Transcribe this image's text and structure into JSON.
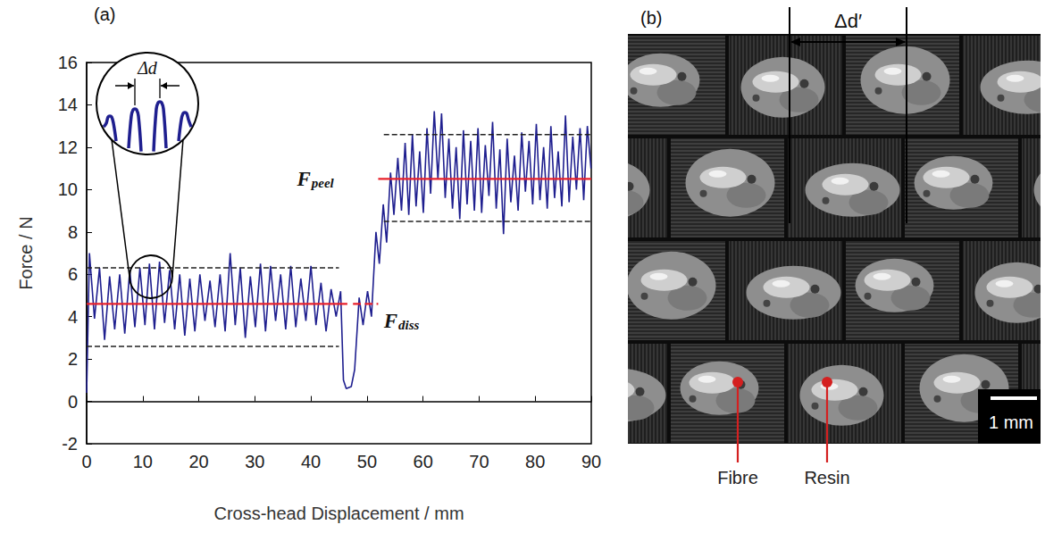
{
  "chart_data": {
    "type": "line",
    "title": "(a)",
    "x_label": "Cross-head Displacement / mm",
    "y_label": "Force / N",
    "color": "#1f1f8f",
    "marker": "none",
    "grid": false,
    "xlim": [
      0,
      90
    ],
    "xticks": [
      0,
      10,
      20,
      30,
      40,
      50,
      60,
      70,
      80,
      90
    ],
    "ylim": [
      -2,
      16
    ],
    "yticks": [
      -2,
      0,
      2,
      4,
      6,
      8,
      10,
      12,
      14,
      16
    ],
    "x": [
      0,
      0.5,
      1.4,
      2.3,
      3.2,
      4.1,
      5.0,
      5.9,
      6.8,
      7.7,
      8.6,
      9.5,
      10.4,
      11.2,
      12.1,
      13.0,
      13.9,
      14.8,
      15.7,
      16.6,
      17.5,
      18.4,
      19.3,
      20.2,
      21.1,
      22.0,
      22.9,
      23.8,
      24.7,
      25.6,
      26.5,
      27.4,
      28.3,
      29.2,
      30.1,
      31.0,
      31.9,
      32.8,
      33.7,
      34.6,
      35.5,
      36.4,
      37.3,
      38.2,
      39.1,
      40.0,
      40.9,
      41.8,
      42.7,
      43.6,
      44.5,
      45.3,
      45.8,
      46.3,
      47.2,
      47.8,
      48.6,
      49.3,
      50.1,
      50.8,
      51.6,
      52.2,
      52.9,
      53.5,
      54.2,
      54.8,
      55.5,
      56.15,
      56.8,
      57.45,
      58.1,
      58.75,
      59.4,
      60.05,
      60.7,
      61.35,
      62.0,
      62.65,
      63.3,
      63.95,
      64.6,
      65.25,
      65.9,
      66.55,
      67.2,
      67.85,
      68.5,
      69.15,
      69.8,
      70.45,
      71.1,
      71.75,
      72.4,
      73.05,
      73.7,
      74.35,
      75.0,
      75.65,
      76.3,
      76.95,
      77.6,
      78.25,
      78.9,
      79.55,
      80.2,
      80.85,
      81.5,
      82.15,
      82.8,
      83.45,
      84.1,
      84.75,
      85.4,
      86.05,
      86.7,
      87.35,
      88.0,
      88.65,
      89.3,
      89.95
    ],
    "values": [
      0.4,
      7.0,
      3.9,
      6.3,
      2.9,
      5.9,
      3.4,
      6.0,
      3.2,
      6.2,
      3.5,
      6.3,
      3.6,
      6.5,
      3.4,
      6.6,
      3.7,
      6.2,
      3.4,
      6.0,
      3.1,
      5.8,
      3.3,
      6.0,
      3.8,
      5.7,
      3.5,
      6.0,
      3.3,
      7.0,
      3.6,
      6.3,
      3.0,
      5.9,
      3.5,
      6.5,
      3.3,
      6.4,
      3.8,
      6.0,
      3.4,
      6.4,
      3.5,
      5.8,
      3.8,
      6.4,
      3.6,
      5.6,
      3.3,
      5.3,
      4.0,
      5.2,
      1.0,
      0.6,
      0.7,
      1.5,
      4.9,
      3.6,
      5.2,
      4.0,
      8.0,
      6.5,
      9.3,
      7.5,
      10.8,
      8.8,
      11.5,
      9.0,
      12.2,
      8.8,
      12.6,
      9.2,
      11.8,
      8.9,
      12.9,
      9.8,
      13.7,
      10.5,
      13.6,
      9.6,
      12.4,
      9.1,
      12.0,
      8.6,
      12.8,
      9.3,
      12.3,
      9.0,
      12.9,
      8.9,
      12.1,
      9.7,
      13.2,
      9.1,
      11.9,
      7.9,
      12.4,
      9.4,
      11.6,
      9.0,
      12.7,
      9.9,
      12.3,
      9.3,
      13.1,
      9.5,
      12.0,
      9.1,
      13.0,
      9.6,
      11.8,
      9.2,
      13.5,
      9.4,
      12.5,
      10.0,
      12.9,
      9.5,
      13.0,
      11.0
    ],
    "reference_lines": [
      {
        "y": 4.6,
        "x": [
          0,
          46.5
        ],
        "color": "#e8212b",
        "line_style": "solid"
      },
      {
        "y": 4.6,
        "x": [
          47.5,
          52
        ],
        "color": "#e8212b",
        "line_style": "dashed"
      },
      {
        "y": 10.5,
        "x": [
          52,
          90
        ],
        "color": "#e8212b",
        "line_style": "solid"
      },
      {
        "y": 6.3,
        "x": [
          0,
          45
        ],
        "color": "#222222",
        "line_style": "dashed"
      },
      {
        "y": 2.6,
        "x": [
          0,
          45
        ],
        "color": "#222222",
        "line_style": "dashed"
      },
      {
        "y": 12.6,
        "x": [
          53,
          90
        ],
        "color": "#222222",
        "line_style": "dashed"
      },
      {
        "y": 8.5,
        "x": [
          53,
          90
        ],
        "color": "#222222",
        "line_style": "dashed"
      }
    ],
    "annotations": [
      {
        "text": "F",
        "subscript": "peel",
        "x": 37.5,
        "y": 10.5
      },
      {
        "text": "F",
        "subscript": "diss",
        "x": 53,
        "y": 3.8
      }
    ],
    "inset": {
      "label": "Δd"
    }
  },
  "photo": {
    "label": "(b)",
    "dimension": "Δd′",
    "scale_bar": "1 mm",
    "callouts": [
      "Fibre",
      "Resin"
    ]
  }
}
